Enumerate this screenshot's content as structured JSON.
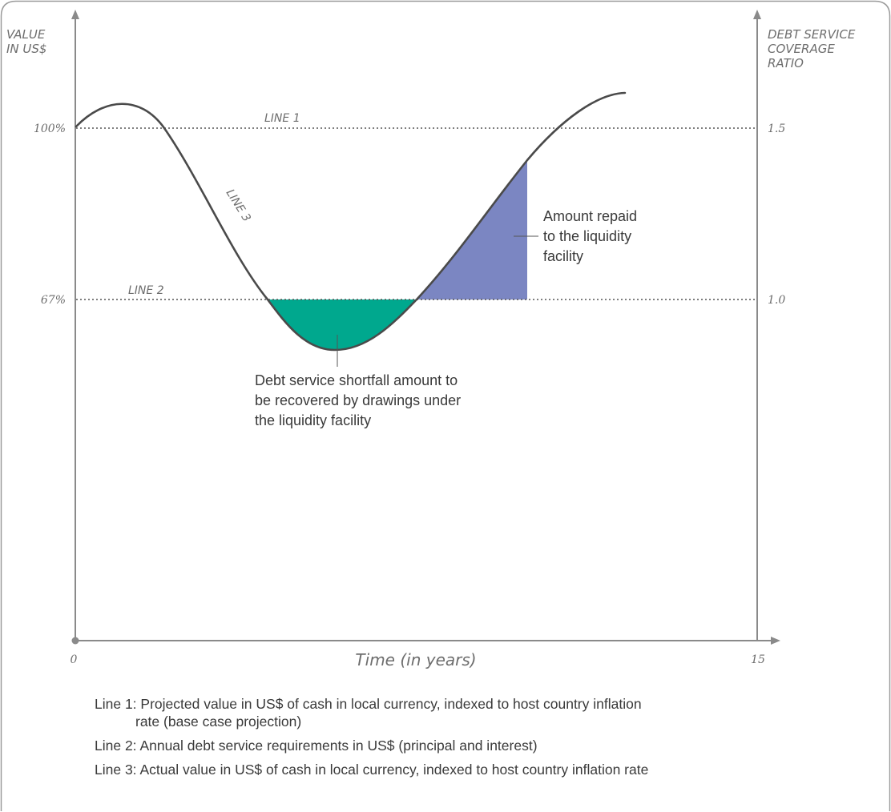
{
  "axes": {
    "y_left_title": [
      "VALUE",
      "IN US$"
    ],
    "y_right_title": [
      "DEBT SERVICE",
      "COVERAGE",
      "RATIO"
    ],
    "x_label": "Time (in years)",
    "x_ticks": [
      "0",
      "15"
    ],
    "y_left_ticks": [
      "100%",
      "67%"
    ],
    "y_right_ticks": [
      "1.5",
      "1.0"
    ]
  },
  "lines": {
    "line1": "LINE 1",
    "line2": "LINE 2",
    "line3": "LINE 3"
  },
  "callouts": {
    "repaid": [
      "Amount repaid",
      "to the liquidity",
      "facility"
    ],
    "shortfall": [
      "Debt service shortfall amount to",
      "be recovered by drawings under",
      "the liquidity facility"
    ]
  },
  "legend": {
    "line1_first": "Line 1: Projected value in US$ of cash in local currency, indexed to host country inflation",
    "line1_cont": "rate (base case projection)",
    "line2": "Line 2: Annual debt service requirements in US$ (principal and interest)",
    "line3": "Line 3: Actual value in US$ of cash in local currency, indexed to host country inflation rate"
  },
  "colors": {
    "frame": "#9a9a9a",
    "axis": "#8a8a8a",
    "curve": "#4a4a4a",
    "shortfall_fill": "#00a88e",
    "repaid_fill": "#7b86c2"
  }
}
